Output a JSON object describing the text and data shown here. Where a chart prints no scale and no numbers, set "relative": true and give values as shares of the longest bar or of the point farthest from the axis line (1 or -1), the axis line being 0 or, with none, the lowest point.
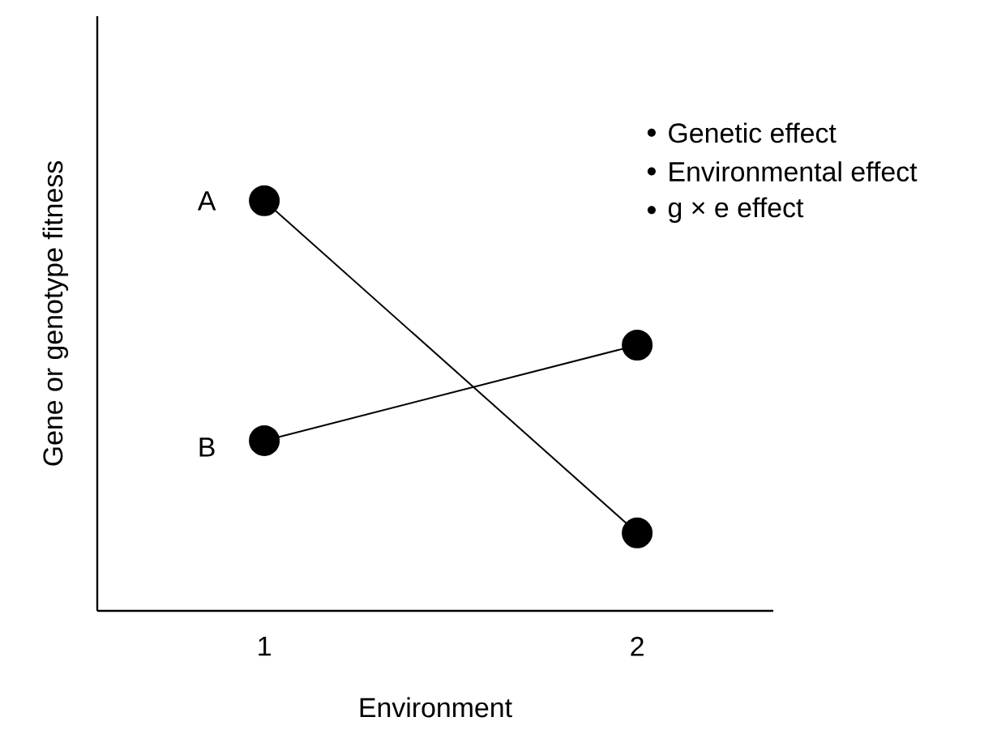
{
  "chart_data": {
    "type": "line",
    "xlabel": "Environment",
    "ylabel": "Gene or genotype fitness",
    "categories": [
      "1",
      "2"
    ],
    "relative": true,
    "marker": "circle",
    "line_style": "solid",
    "grid": false,
    "series": [
      {
        "name": "A",
        "color": "#000000",
        "values": [
          1,
          0.19
        ]
      },
      {
        "name": "B",
        "color": "#000000",
        "values": [
          0.415,
          0.648
        ]
      }
    ],
    "annotations": [
      "Genetic effect",
      "Environmental effect",
      "g × e effect"
    ]
  }
}
